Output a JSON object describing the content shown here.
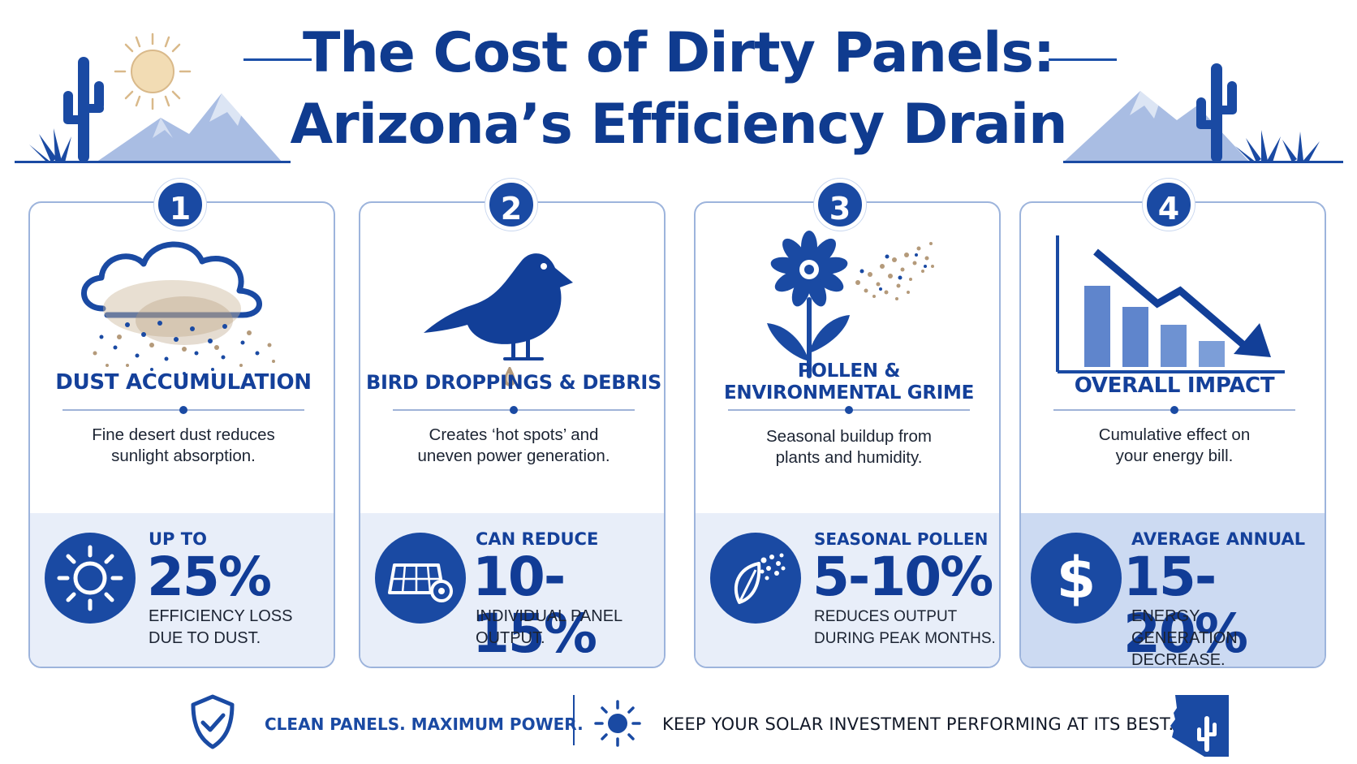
{
  "title": {
    "line1": "The Cost of Dirty Panels:",
    "line2": "Arizona’s Efficiency Drain"
  },
  "colors": {
    "primary": "#1a4aa3",
    "dark_text": "#0f3b8f",
    "panel_bg": "#e8eef9",
    "panel_bg_dark": "#ccdaf2",
    "dust": "#b49a7a",
    "mountain": "#a9bde3"
  },
  "cards": [
    {
      "number": "1",
      "heading": "DUST ACCUMULATION",
      "description_line1": "Fine desert dust reduces",
      "description_line2": "sunlight absorption.",
      "stat_top": "UP TO",
      "stat_value": "25%",
      "stat_bottom_line1": "EFFICIENCY LOSS",
      "stat_bottom_line2": "DUE TO DUST.",
      "illustration": "dust-cloud-icon",
      "stat_icon": "sun-icon"
    },
    {
      "number": "2",
      "heading": "BIRD DROPPINGS & DEBRIS",
      "description_line1": "Creates ‘hot spots’ and",
      "description_line2": "uneven power generation.",
      "stat_top": "CAN REDUCE",
      "stat_value": "10-15%",
      "stat_bottom_line1": "INDIVIDUAL PANEL",
      "stat_bottom_line2": "OUTPUT.",
      "illustration": "bird-icon",
      "stat_icon": "solar-panel-icon"
    },
    {
      "number": "3",
      "heading_line1": "POLLEN &",
      "heading_line2": "ENVIRONMENTAL GRIME",
      "description_line1": "Seasonal buildup from",
      "description_line2": "plants and humidity.",
      "stat_top": "SEASONAL POLLEN",
      "stat_value": "5-10%",
      "stat_bottom_line1": "REDUCES OUTPUT",
      "stat_bottom_line2": "DURING PEAK MONTHS.",
      "illustration": "flower-icon",
      "stat_icon": "leaf-pollen-icon"
    },
    {
      "number": "4",
      "heading": "OVERALL IMPACT",
      "description_line1": "Cumulative effect on",
      "description_line2": "your energy bill.",
      "stat_top": "AVERAGE ANNUAL",
      "stat_value": "15-20%",
      "stat_bottom_line1": "ENERGY GENERATION",
      "stat_bottom_line2": "DECREASE.",
      "illustration": "declining-bar-chart-icon",
      "stat_icon": "dollar-icon"
    }
  ],
  "footer": {
    "tagline": "CLEAN PANELS. MAXIMUM POWER.",
    "message": "KEEP YOUR SOLAR INVESTMENT PERFORMING AT ITS BEST.",
    "left_icon": "shield-check-icon",
    "middle_icon": "sun-icon",
    "right_icon": "arizona-map-icon"
  }
}
